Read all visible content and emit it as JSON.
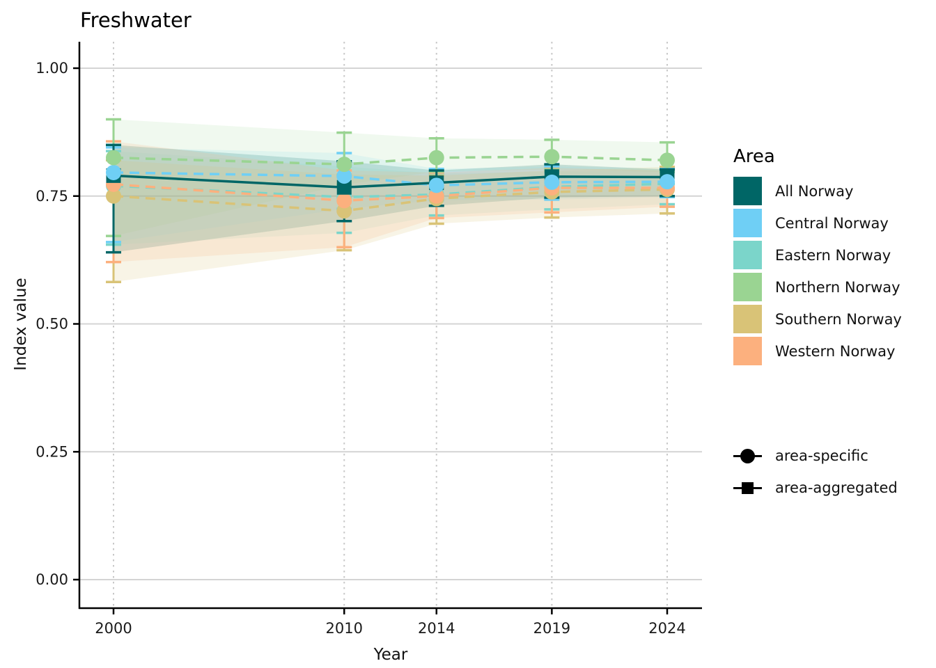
{
  "title": "Freshwater",
  "axes": {
    "x_label": "Year",
    "y_label": "Index value",
    "x_tick_labels": [
      "2000",
      "2010",
      "2014",
      "2019",
      "2024"
    ],
    "y_tick_labels": [
      "0.00",
      "0.25",
      "0.50",
      "0.75",
      "1.00"
    ]
  },
  "legend_area": {
    "title": "Area",
    "items": [
      {
        "label": "All Norway",
        "color": "#006666"
      },
      {
        "label": "Central Norway",
        "color": "#6FCFF5"
      },
      {
        "label": "Eastern Norway",
        "color": "#7BD5CA"
      },
      {
        "label": "Northern Norway",
        "color": "#9AD492"
      },
      {
        "label": "Southern Norway",
        "color": "#D9C377"
      },
      {
        "label": "Western Norway",
        "color": "#FCB07E"
      }
    ]
  },
  "legend_type": {
    "items": [
      {
        "label": "area-specific",
        "marker": "circle"
      },
      {
        "label": "area-aggregated",
        "marker": "square"
      }
    ]
  },
  "chart_data": {
    "type": "line",
    "title": "Freshwater",
    "xlabel": "Year",
    "ylabel": "Index value",
    "x": [
      2000,
      2010,
      2014,
      2019,
      2024
    ],
    "xlim": [
      1998.5,
      2025.5
    ],
    "ylim": [
      0,
      1
    ],
    "y_ticks": [
      0,
      0.25,
      0.5,
      0.75,
      1
    ],
    "grid": {
      "horizontal": "solid",
      "vertical": "dotted"
    },
    "legend_position": "right",
    "series": [
      {
        "name": "All Norway",
        "color": "#006666",
        "marker": "square",
        "line": "solid",
        "kind": "area-aggregated",
        "ribbon_opacity": 0.2,
        "values": [
          0.79,
          0.767,
          0.776,
          0.788,
          0.787
        ],
        "lower": [
          0.64,
          0.701,
          0.731,
          0.747,
          0.75
        ],
        "upper": [
          0.85,
          0.818,
          0.8,
          0.812,
          0.802
        ]
      },
      {
        "name": "Central Norway",
        "color": "#6FCFF5",
        "marker": "circle",
        "line": "dashed",
        "kind": "area-specific",
        "ribbon_opacity": 0.13,
        "values": [
          0.796,
          0.789,
          0.771,
          0.777,
          0.778
        ],
        "lower": [
          0.66,
          0.725,
          0.742,
          0.743,
          0.748
        ],
        "upper": [
          0.845,
          0.834,
          0.803,
          0.808,
          0.803
        ]
      },
      {
        "name": "Eastern Norway",
        "color": "#7BD5CA",
        "marker": "circle",
        "line": "dashed",
        "kind": "area-specific",
        "ribbon_opacity": 0.13,
        "values": [
          0.77,
          0.748,
          0.753,
          0.768,
          0.774
        ],
        "lower": [
          0.655,
          0.678,
          0.712,
          0.724,
          0.734
        ],
        "upper": [
          0.838,
          0.808,
          0.794,
          0.798,
          0.8
        ]
      },
      {
        "name": "Northern Norway",
        "color": "#9AD492",
        "marker": "circle",
        "line": "dashed",
        "kind": "area-specific",
        "ribbon_opacity": 0.15,
        "values": [
          0.825,
          0.812,
          0.825,
          0.827,
          0.82
        ],
        "lower": [
          0.672,
          0.772,
          0.798,
          0.802,
          0.797
        ],
        "upper": [
          0.9,
          0.874,
          0.863,
          0.86,
          0.855
        ]
      },
      {
        "name": "Southern Norway",
        "color": "#D9C377",
        "marker": "circle",
        "line": "dashed",
        "kind": "area-specific",
        "ribbon_opacity": 0.18,
        "values": [
          0.75,
          0.721,
          0.745,
          0.758,
          0.763
        ],
        "lower": [
          0.582,
          0.644,
          0.696,
          0.708,
          0.716
        ],
        "upper": [
          0.82,
          0.792,
          0.79,
          0.8,
          0.807
        ]
      },
      {
        "name": "Western Norway",
        "color": "#FCB07E",
        "marker": "circle",
        "line": "dashed",
        "kind": "area-specific",
        "ribbon_opacity": 0.18,
        "values": [
          0.773,
          0.741,
          0.75,
          0.766,
          0.766
        ],
        "lower": [
          0.621,
          0.65,
          0.707,
          0.718,
          0.729
        ],
        "upper": [
          0.857,
          0.8,
          0.796,
          0.805,
          0.8
        ]
      }
    ]
  }
}
